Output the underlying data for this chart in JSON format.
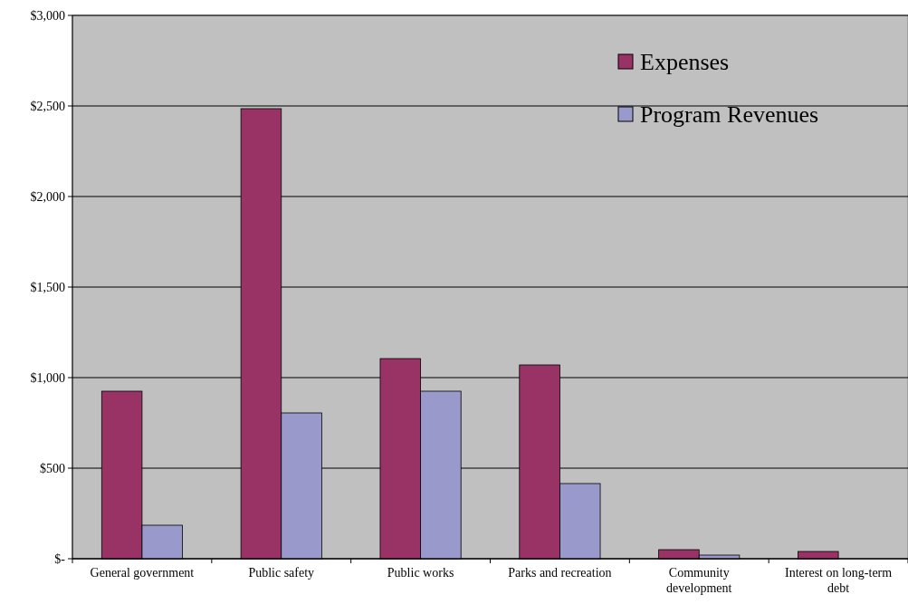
{
  "chart_data": {
    "type": "bar",
    "categories": [
      "General government",
      "Public safety",
      "Public works",
      "Parks and recreation",
      "Community development",
      "Interest on long-term debt"
    ],
    "series": [
      {
        "name": "Expenses",
        "color": "#993366",
        "values": [
          925,
          2485,
          1105,
          1070,
          50,
          40
        ]
      },
      {
        "name": "Program Revenues",
        "color": "#9999cc",
        "values": [
          185,
          805,
          925,
          415,
          20,
          0
        ]
      }
    ],
    "ylim": [
      0,
      3000
    ],
    "yticks": [
      {
        "value": 0,
        "label": "$-"
      },
      {
        "value": 500,
        "label": "$500"
      },
      {
        "value": 1000,
        "label": "$1,000"
      },
      {
        "value": 1500,
        "label": "$1,500"
      },
      {
        "value": 2000,
        "label": "$2,000"
      },
      {
        "value": 2500,
        "label": "$2,500"
      },
      {
        "value": 3000,
        "label": "$3,000"
      }
    ],
    "grid": "y",
    "legend": "top right"
  }
}
